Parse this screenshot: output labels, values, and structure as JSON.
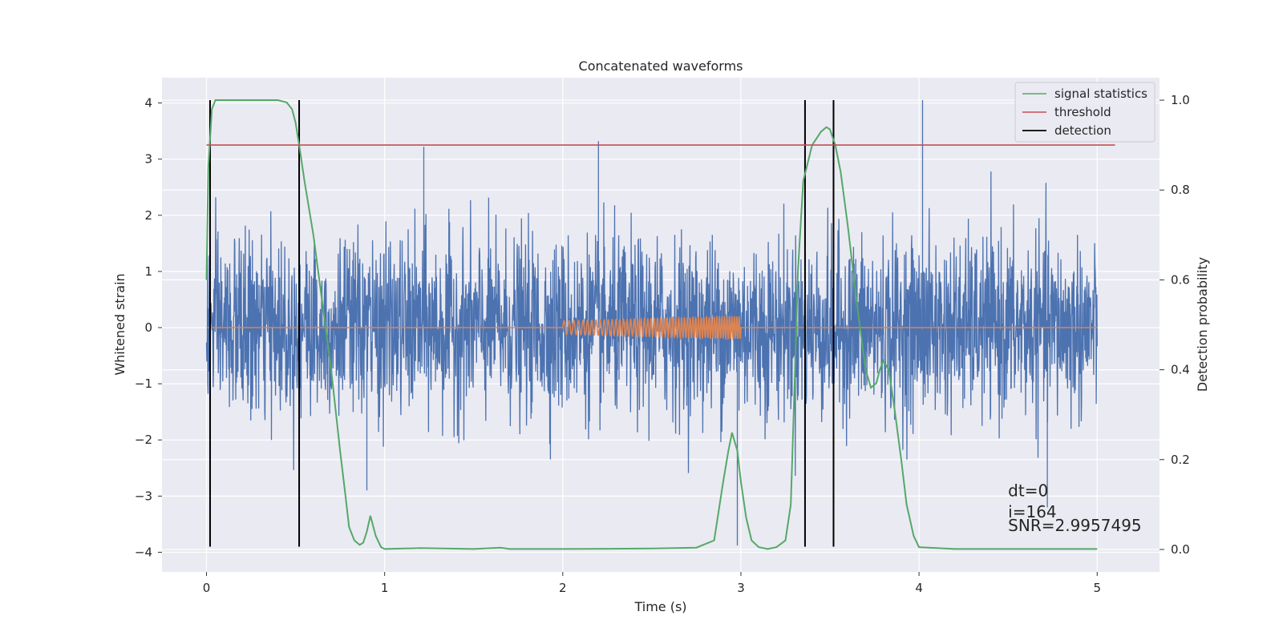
{
  "chart_data": {
    "type": "line",
    "title": "Concatenated waveforms",
    "xlabel": "Time (s)",
    "ylabel": "Whitened strain",
    "ylabel_right": "Detection probability",
    "xlim": [
      -0.25,
      5.35
    ],
    "ylim": [
      -4.35,
      4.45
    ],
    "ylim_right": [
      -0.05,
      1.05
    ],
    "x_ticks": [
      "0",
      "1",
      "2",
      "3",
      "4",
      "5"
    ],
    "y_ticks": [
      "4",
      "3",
      "2",
      "1",
      "0",
      "−1",
      "−2",
      "−3",
      "−4"
    ],
    "y_ticks_right": [
      "1.0",
      "0.8",
      "0.6",
      "0.4",
      "0.2",
      "0.0"
    ],
    "grid": true,
    "legend_position": "top-right",
    "legend": [
      {
        "label": "signal statistics",
        "color": "#55a868"
      },
      {
        "label": "threshold",
        "color": "#c44e52"
      },
      {
        "label": "detection",
        "color": "#000000"
      }
    ],
    "series": [
      {
        "role": "whitened-strain",
        "color": "#4c72b0",
        "x_range": [
          0,
          5
        ],
        "envelope_abs": 2.0,
        "peak_max": 4.05,
        "peak_min": -3.88
      },
      {
        "role": "injected-waveform",
        "color": "#dd8452",
        "x_range": [
          0,
          5
        ],
        "chirp_range": [
          2.0,
          3.0
        ],
        "chirp_amplitude_start": 0.12,
        "chirp_amplitude_end": 0.2
      },
      {
        "name": "signal statistics",
        "color": "#55a868",
        "axis": "right",
        "x": [
          0,
          0.01,
          0.03,
          0.05,
          0.08,
          0.15,
          0.3,
          0.4,
          0.45,
          0.48,
          0.5,
          0.52,
          0.55,
          0.6,
          0.65,
          0.7,
          0.75,
          0.78,
          0.8,
          0.83,
          0.86,
          0.88,
          0.9,
          0.92,
          0.95,
          0.98,
          1.0,
          1.2,
          1.5,
          1.65,
          1.7,
          2.0,
          2.5,
          2.75,
          2.85,
          2.9,
          2.93,
          2.95,
          2.98,
          3.0,
          3.03,
          3.06,
          3.1,
          3.15,
          3.2,
          3.25,
          3.28,
          3.3,
          3.32,
          3.35,
          3.4,
          3.45,
          3.48,
          3.5,
          3.53,
          3.56,
          3.6,
          3.65,
          3.7,
          3.73,
          3.76,
          3.78,
          3.8,
          3.83,
          3.86,
          3.9,
          3.93,
          3.97,
          4.0,
          4.2,
          4.5,
          5.0
        ],
        "y": [
          0.6,
          0.85,
          0.98,
          1.0,
          1.0,
          1.0,
          1.0,
          1.0,
          0.995,
          0.98,
          0.95,
          0.9,
          0.82,
          0.7,
          0.55,
          0.4,
          0.22,
          0.12,
          0.05,
          0.02,
          0.01,
          0.015,
          0.04,
          0.075,
          0.03,
          0.005,
          0.001,
          0.003,
          0.001,
          0.004,
          0.001,
          0.001,
          0.002,
          0.004,
          0.02,
          0.15,
          0.22,
          0.26,
          0.22,
          0.15,
          0.07,
          0.02,
          0.005,
          0.001,
          0.005,
          0.02,
          0.1,
          0.35,
          0.62,
          0.82,
          0.9,
          0.93,
          0.94,
          0.935,
          0.9,
          0.84,
          0.72,
          0.55,
          0.4,
          0.36,
          0.37,
          0.4,
          0.42,
          0.4,
          0.32,
          0.2,
          0.1,
          0.03,
          0.005,
          0.001,
          0.001,
          0.001
        ]
      },
      {
        "name": "threshold",
        "color": "#c44e52",
        "axis": "right",
        "x": [
          0,
          5.1
        ],
        "y": [
          0.9,
          0.9
        ]
      }
    ],
    "detections": [
      {
        "x": 0.02,
        "y_range": [
          -3.9,
          4.05
        ]
      },
      {
        "x": 0.52,
        "y_range": [
          -3.9,
          4.05
        ]
      },
      {
        "x": 3.36,
        "y_range": [
          -3.9,
          4.05
        ]
      },
      {
        "x": 3.52,
        "y_range": [
          -3.9,
          4.05
        ]
      }
    ],
    "annotations": [
      {
        "text": "dt=0",
        "x": 4.5,
        "y": -3.0
      },
      {
        "text": "i=164",
        "x": 4.5,
        "y": -3.38
      },
      {
        "text": "SNR=2.9957495",
        "x": 4.5,
        "y": -3.62
      }
    ]
  }
}
